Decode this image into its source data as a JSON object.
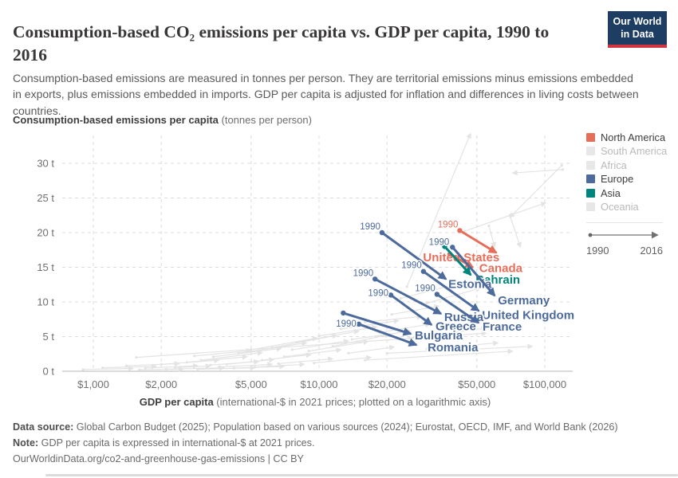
{
  "header": {
    "title": "Consumption-based CO₂ emissions per capita vs. GDP per capita, 1990 to 2016",
    "logo": {
      "line1": "Our World",
      "line2": "in Data",
      "bg_color": "#1d3d63",
      "bar_color": "#d0353f"
    }
  },
  "subtitle": "Consumption-based emissions are measured in tonnes per person. They are territorial emissions minus emissions embedded in exports, plus emissions embedded in imports. GDP per capita is adjusted for inflation and differences in living costs between countries.",
  "legend": {
    "items": [
      {
        "label": "North America",
        "color": "#e56e5a",
        "active": true
      },
      {
        "label": "South America",
        "color": "#e7e7e7",
        "active": false
      },
      {
        "label": "Africa",
        "color": "#e7e7e7",
        "active": false
      },
      {
        "label": "Europe",
        "color": "#4c6a9c",
        "active": true
      },
      {
        "label": "Asia",
        "color": "#00847e",
        "active": true
      },
      {
        "label": "Oceania",
        "color": "#e7e7e7",
        "active": false
      }
    ],
    "timeline": {
      "start": "1990",
      "end": "2016"
    }
  },
  "chart_data": {
    "type": "connected-scatter-arrows",
    "title": "Consumption-based CO₂ emissions per capita vs. GDP per capita, 1990 to 2016",
    "x_axis": {
      "label_bold": "GDP per capita",
      "label_rest": " (international-$ in 2021 prices; plotted on a logarithmic axis)",
      "scale": "log",
      "ticks": [
        1000,
        2000,
        5000,
        10000,
        20000,
        50000,
        100000
      ],
      "tick_labels": [
        "$1,000",
        "$2,000",
        "$5,000",
        "$10,000",
        "$20,000",
        "$50,000",
        "$100,000"
      ],
      "range": [
        750,
        135000
      ]
    },
    "y_axis": {
      "label_bold": "Consumption-based emissions per capita",
      "label_rest": " (tonnes per person)",
      "scale": "linear",
      "ticks": [
        0,
        5,
        10,
        15,
        20,
        25,
        30
      ],
      "tick_labels": [
        "0 t",
        "5 t",
        "10 t",
        "15 t",
        "20 t",
        "25 t",
        "30 t"
      ],
      "range": [
        0,
        34.5
      ]
    },
    "years": {
      "start": "1990",
      "end": "2016"
    },
    "grid": true,
    "legend_position": "right",
    "series": [
      {
        "name": "United States",
        "region": "North America",
        "color": "#e56e5a",
        "start": [
          42000,
          20.3
        ],
        "end": [
          61000,
          17.1
        ],
        "year_label": true,
        "year_offset": [
          -2,
          -4
        ],
        "label_anchor": "end",
        "label_offset": [
          4,
          11
        ]
      },
      {
        "name": "Canada",
        "region": "North America",
        "color": "#e56e5a",
        "start": [
          38000,
          16.9
        ],
        "end": [
          48000,
          15.0
        ],
        "year_label": false,
        "year_offset": [
          0,
          0
        ],
        "label_anchor": "start",
        "label_offset": [
          8,
          6
        ]
      },
      {
        "name": "Bahrain",
        "region": "Asia",
        "color": "#00847e",
        "start": [
          36000,
          18.0
        ],
        "end": [
          47000,
          13.9
        ],
        "year_label": false,
        "year_offset": [
          0,
          0
        ],
        "label_anchor": "start",
        "label_offset": [
          6,
          11
        ]
      },
      {
        "name": "Estonia",
        "region": "Europe",
        "color": "#4c6a9c",
        "start": [
          19000,
          20.0
        ],
        "end": [
          36500,
          13.3
        ],
        "year_label": true,
        "year_offset": [
          -2,
          -4
        ],
        "label_anchor": "start",
        "label_offset": [
          3,
          11
        ]
      },
      {
        "name": "Germany",
        "region": "Europe",
        "color": "#4c6a9c",
        "start": [
          39000,
          17.9
        ],
        "end": [
          60000,
          10.9
        ],
        "year_label": true,
        "year_offset": [
          -4,
          -3
        ],
        "label_anchor": "start",
        "label_offset": [
          4,
          11
        ]
      },
      {
        "name": "United Kingdom",
        "region": "Europe",
        "color": "#4c6a9c",
        "start": [
          29000,
          14.4
        ],
        "end": [
          51000,
          8.7
        ],
        "year_label": true,
        "year_offset": [
          -2,
          -4
        ],
        "label_anchor": "start",
        "label_offset": [
          4,
          10
        ]
      },
      {
        "name": "Russia",
        "region": "Europe",
        "color": "#4c6a9c",
        "start": [
          17700,
          13.3
        ],
        "end": [
          34700,
          8.3
        ],
        "year_label": true,
        "year_offset": [
          -2,
          -4
        ],
        "label_anchor": "start",
        "label_offset": [
          4,
          9
        ]
      },
      {
        "name": "France",
        "region": "Europe",
        "color": "#4c6a9c",
        "start": [
          33300,
          11.1
        ],
        "end": [
          50900,
          7.0
        ],
        "year_label": true,
        "year_offset": [
          -2,
          -4
        ],
        "label_anchor": "start",
        "label_offset": [
          5,
          10
        ]
      },
      {
        "name": "Greece",
        "region": "Europe",
        "color": "#4c6a9c",
        "start": [
          20800,
          11.0
        ],
        "end": [
          31500,
          6.7
        ],
        "year_label": true,
        "year_offset": [
          -3,
          1
        ],
        "label_anchor": "start",
        "label_offset": [
          5,
          7
        ]
      },
      {
        "name": "Bulgaria",
        "region": "Europe",
        "color": "#4c6a9c",
        "start": [
          12800,
          8.4
        ],
        "end": [
          25500,
          5.4
        ],
        "year_label": false,
        "year_offset": [
          0,
          0
        ],
        "label_anchor": "start",
        "label_offset": [
          5,
          7
        ]
      },
      {
        "name": "Romania",
        "region": "Europe",
        "color": "#4c6a9c",
        "start": [
          15000,
          6.8
        ],
        "end": [
          27000,
          3.8
        ],
        "year_label": true,
        "year_offset": [
          -3,
          3
        ],
        "label_anchor": "start",
        "label_offset": [
          14,
          8
        ]
      }
    ],
    "background_arrows": [
      [
        900,
        0.25,
        1500,
        0.4
      ],
      [
        1100,
        0.5,
        1900,
        0.7
      ],
      [
        1400,
        0.8,
        2400,
        1.1
      ],
      [
        1700,
        0.45,
        2900,
        0.8
      ],
      [
        2000,
        1.0,
        3600,
        1.6
      ],
      [
        2300,
        0.55,
        3300,
        0.75
      ],
      [
        2600,
        1.3,
        4800,
        2.1
      ],
      [
        3000,
        1.6,
        5600,
        2.7
      ],
      [
        3400,
        2.1,
        6800,
        3.3
      ],
      [
        3900,
        1.0,
        6300,
        1.7
      ],
      [
        4400,
        2.6,
        8800,
        4.1
      ],
      [
        5000,
        3.1,
        9800,
        4.8
      ],
      [
        5600,
        1.6,
        9200,
        2.4
      ],
      [
        6200,
        3.4,
        12000,
        5.2
      ],
      [
        7000,
        2.1,
        12500,
        3.1
      ],
      [
        8000,
        4.2,
        15000,
        5.8
      ],
      [
        9000,
        2.9,
        16500,
        4.3
      ],
      [
        10000,
        5.1,
        18000,
        6.4
      ],
      [
        11500,
        3.6,
        20500,
        5.3
      ],
      [
        12500,
        6.1,
        22500,
        7.3
      ],
      [
        14000,
        4.6,
        25500,
        5.8
      ],
      [
        16000,
        7.1,
        28500,
        7.9
      ],
      [
        2900,
        0.3,
        5200,
        0.5
      ],
      [
        3300,
        0.9,
        5400,
        1.4
      ],
      [
        1600,
        0.2,
        2500,
        0.3
      ],
      [
        6600,
        1.1,
        11500,
        1.8
      ],
      [
        7600,
        3.1,
        13500,
        4.4
      ],
      [
        13500,
        2.6,
        21500,
        3.5
      ],
      [
        18500,
        5.6,
        31000,
        6.8
      ],
      [
        21000,
        8.2,
        34000,
        9.4
      ],
      [
        5200,
        0.6,
        8600,
        1.0
      ],
      [
        4200,
        0.45,
        7000,
        0.7
      ],
      [
        1550,
        2.0,
        55000,
        5.5
      ],
      [
        20000,
        2.6,
        88000,
        3.6
      ],
      [
        16000,
        1.6,
        72000,
        2.9
      ],
      [
        25000,
        4.8,
        55000,
        6.2
      ],
      [
        30000,
        3.2,
        62000,
        4.1
      ],
      [
        24500,
        12.2,
        46900,
        34.3
      ],
      [
        120000,
        29.1,
        72000,
        28.6
      ],
      [
        119000,
        29.7,
        70000,
        22.2
      ],
      [
        44000,
        20.2,
        101000,
        24.3
      ],
      [
        56500,
        21.0,
        60000,
        17.9
      ],
      [
        70000,
        22.5,
        78000,
        17.9
      ],
      [
        23000,
        10.5,
        43000,
        12.8
      ],
      [
        9500,
        1.2,
        17000,
        2.0
      ],
      [
        2100,
        0.3,
        3800,
        0.5
      ],
      [
        2800,
        2.2,
        5000,
        3.0
      ],
      [
        3600,
        0.6,
        6200,
        1.0
      ],
      [
        30000,
        9.8,
        52000,
        12.0
      ]
    ],
    "background_color": "#e3e3e3"
  },
  "footer": {
    "source_label": "Data source:",
    "source_text": " Global Carbon Budget (2025); Population based on various sources (2024); Eurostat, OECD, IMF, and World Bank (2026)",
    "note_label": "Note:",
    "note_text": " GDP per capita is expressed in international-$ at 2021 prices.",
    "link_line": "OurWorldinData.org/co2-and-greenhouse-gas-emissions | CC BY"
  }
}
